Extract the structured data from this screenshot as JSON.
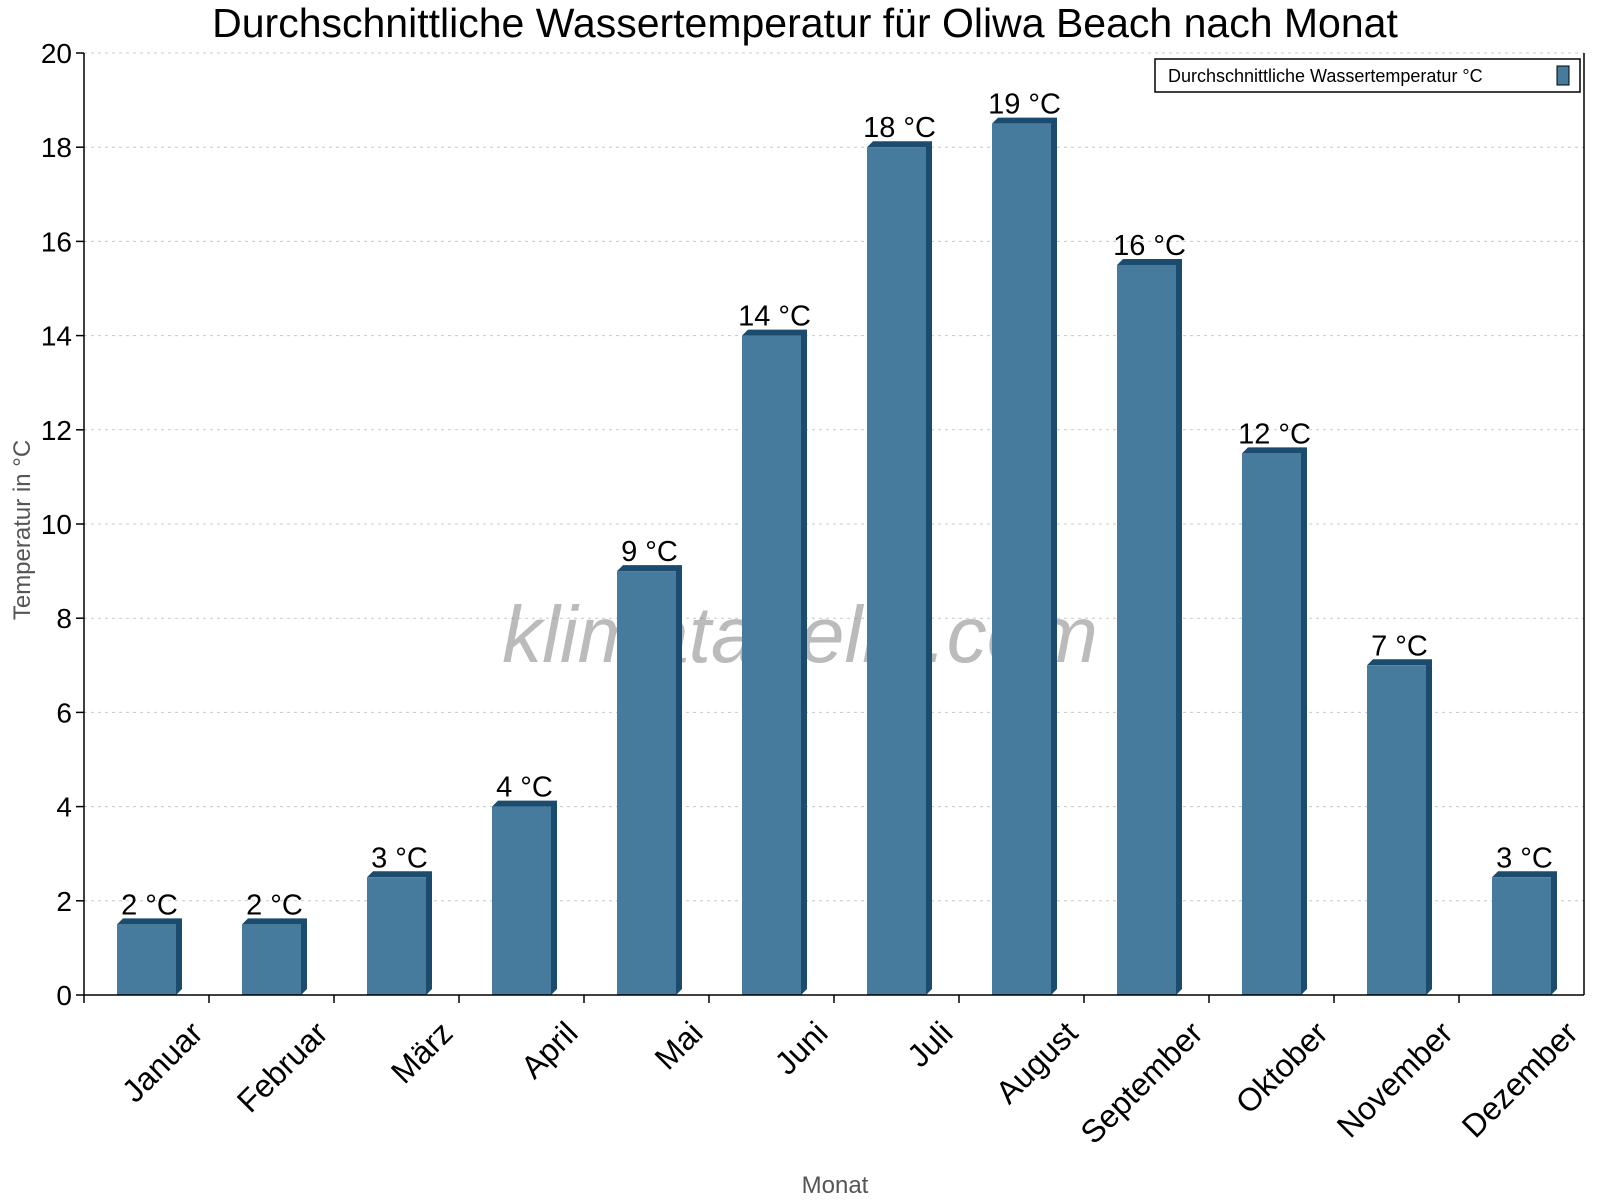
{
  "chart_data": {
    "type": "bar",
    "title": "Durchschnittliche Wassertemperatur für Oliwa Beach nach Monat",
    "xlabel": "Monat",
    "ylabel": "Temperatur in °C",
    "ylim": [
      0,
      20
    ],
    "yticks": [
      "0",
      "2",
      "4",
      "6",
      "8",
      "10",
      "12",
      "14",
      "16",
      "18",
      "20"
    ],
    "grid": true,
    "legend_position": "top-right",
    "categories": [
      "Januar",
      "Februar",
      "März",
      "April",
      "Mai",
      "Juni",
      "Juli",
      "August",
      "September",
      "Oktober",
      "November",
      "Dezember"
    ],
    "series": [
      {
        "name": "Durchschnittliche Wassertemperatur °C",
        "color": "#467b9d",
        "values": [
          1.5,
          1.5,
          2.5,
          4,
          9,
          14,
          18,
          18.5,
          15.5,
          11.5,
          7,
          2.5
        ],
        "labels": [
          "2 °C",
          "2 °C",
          "3 °C",
          "4 °C",
          "9 °C",
          "14 °C",
          "18 °C",
          "19 °C",
          "16 °C",
          "12 °C",
          "7 °C",
          "3 °C"
        ]
      }
    ],
    "watermark": "klimatabelle.com"
  }
}
